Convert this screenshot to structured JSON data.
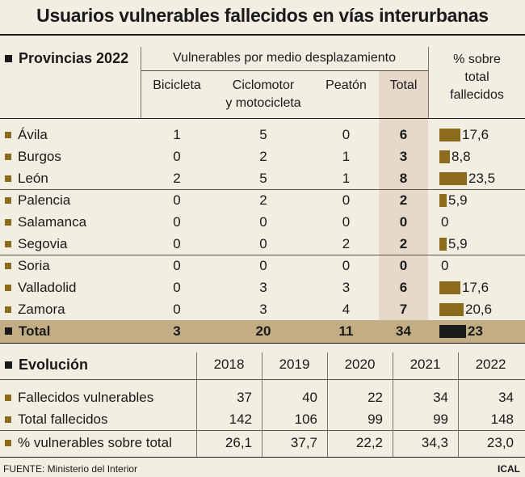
{
  "title": "Usuarios vulnerables fallecidos en vías interurbanas",
  "provinces_table": {
    "section_title": "Provincias 2022",
    "group_header": "Vulnerables por medio desplazamiento",
    "columns": [
      "Bicicleta",
      "Ciclomotor y motocicleta",
      "Peatón",
      "Total"
    ],
    "col_ciclo_line1": "Ciclomotor",
    "col_ciclo_line2": "y motocicleta",
    "pct_header_line1": "% sobre",
    "pct_header_line2": "total",
    "pct_header_line3": "fallecidos",
    "rows": [
      {
        "name": "Ávila",
        "bicicleta": "1",
        "ciclomotor": "5",
        "peaton": "0",
        "total": "6",
        "pct": "17,6",
        "pct_value": 17.6
      },
      {
        "name": "Burgos",
        "bicicleta": "0",
        "ciclomotor": "2",
        "peaton": "1",
        "total": "3",
        "pct": "8,8",
        "pct_value": 8.8
      },
      {
        "name": "León",
        "bicicleta": "2",
        "ciclomotor": "5",
        "peaton": "1",
        "total": "8",
        "pct": "23,5",
        "pct_value": 23.5
      },
      {
        "name": "Palencia",
        "bicicleta": "0",
        "ciclomotor": "2",
        "peaton": "0",
        "total": "2",
        "pct": "5,9",
        "pct_value": 5.9
      },
      {
        "name": "Salamanca",
        "bicicleta": "0",
        "ciclomotor": "0",
        "peaton": "0",
        "total": "0",
        "pct": "0",
        "pct_value": 0
      },
      {
        "name": "Segovia",
        "bicicleta": "0",
        "ciclomotor": "0",
        "peaton": "2",
        "total": "2",
        "pct": "5,9",
        "pct_value": 5.9
      },
      {
        "name": "Soria",
        "bicicleta": "0",
        "ciclomotor": "0",
        "peaton": "0",
        "total": "0",
        "pct": "0",
        "pct_value": 0
      },
      {
        "name": "Valladolid",
        "bicicleta": "0",
        "ciclomotor": "3",
        "peaton": "3",
        "total": "6",
        "pct": "17,6",
        "pct_value": 17.6
      },
      {
        "name": "Zamora",
        "bicicleta": "0",
        "ciclomotor": "3",
        "peaton": "4",
        "total": "7",
        "pct": "20,6",
        "pct_value": 20.6
      }
    ],
    "total_row": {
      "name": "Total",
      "bicicleta": "3",
      "ciclomotor": "20",
      "peaton": "11",
      "total": "34",
      "pct": "23",
      "pct_value": 23
    }
  },
  "evolution_table": {
    "section_title": "Evolución",
    "years": [
      "2018",
      "2019",
      "2020",
      "2021",
      "2022"
    ],
    "rows": [
      {
        "label": "Fallecidos vulnerables",
        "values": [
          "37",
          "40",
          "22",
          "34",
          "34"
        ]
      },
      {
        "label": "Total fallecidos",
        "values": [
          "142",
          "106",
          "99",
          "99",
          "148"
        ]
      },
      {
        "label": "% vulnerables sobre total",
        "values": [
          "26,1",
          "37,7",
          "22,2",
          "34,3",
          "23,0"
        ]
      }
    ]
  },
  "footer": {
    "source": "FUENTE: Ministerio del Interior",
    "brand": "ICAL"
  },
  "colors": {
    "bar": "#8b6b1e",
    "total_bar": "#1a1a1a",
    "total_row_bg": "#c2ad84",
    "total_col_bg": "#e6d9c9",
    "background": "#f3eee2"
  }
}
